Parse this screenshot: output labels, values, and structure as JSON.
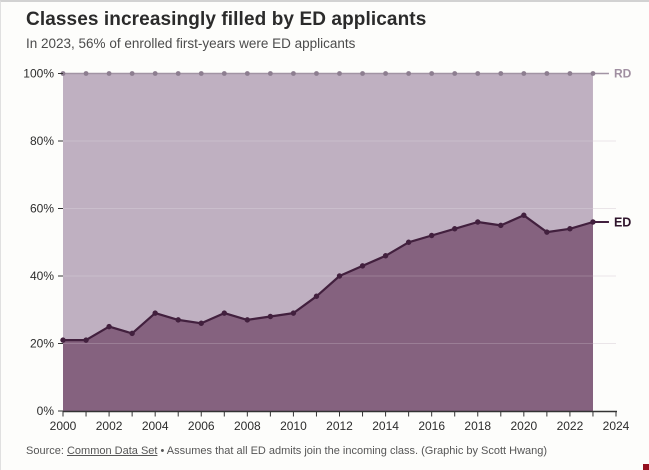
{
  "header": {
    "title": "Classes increasingly filled by ED applicants",
    "subtitle": "In 2023, 56% of enrolled first-years were ED applicants"
  },
  "chart_data": {
    "type": "area",
    "stacked": true,
    "stack_total": 100,
    "x": [
      2000,
      2001,
      2002,
      2003,
      2004,
      2005,
      2006,
      2007,
      2008,
      2009,
      2010,
      2011,
      2012,
      2013,
      2014,
      2015,
      2016,
      2017,
      2018,
      2019,
      2020,
      2021,
      2022,
      2023
    ],
    "series": [
      {
        "name": "ED",
        "values": [
          21,
          21,
          25,
          23,
          29,
          27,
          26,
          29,
          27,
          28,
          29,
          34,
          40,
          43,
          46,
          50,
          52,
          54,
          56,
          55,
          58,
          53,
          54,
          56
        ]
      },
      {
        "name": "RD",
        "values": [
          79,
          79,
          75,
          77,
          71,
          73,
          74,
          71,
          73,
          72,
          71,
          66,
          60,
          57,
          54,
          50,
          48,
          46,
          44,
          45,
          42,
          47,
          46,
          44
        ]
      }
    ],
    "rd_cumulative_line": 100,
    "xlim": [
      2000,
      2024
    ],
    "ylim": [
      0,
      100
    ],
    "x_tick_labels": [
      "2000",
      "2002",
      "2004",
      "2006",
      "2008",
      "2010",
      "2012",
      "2014",
      "2016",
      "2018",
      "2020",
      "2022",
      "2024"
    ],
    "x_minor_tick_step": 1,
    "y_tick_labels": [
      "0%",
      "20%",
      "40%",
      "60%",
      "80%",
      "100%"
    ],
    "y_tick_step": 20,
    "grid": true,
    "legend_position": "end-of-line",
    "end_labels": [
      {
        "text": "RD",
        "at_value": 100
      },
      {
        "text": "ED",
        "at_value": 56
      }
    ],
    "colors": {
      "ed_fill": "#85627f",
      "ed_line": "#42203e",
      "ed_label": "#2f152c",
      "rd_fill": "#bfb0c1",
      "rd_line": "#a294a4",
      "rd_marker": "#8d7e90",
      "rd_label": "#a08fa1",
      "axis": "#333333",
      "tick_text": "#2d2d2d",
      "grid_under": "#eae5e8",
      "grid_over": "rgba(255,255,255,0.18)"
    }
  },
  "footer": {
    "source_prefix": "Source: ",
    "source_link": "Common Data Set",
    "source_suffix": " • Assumes that all ED admits join the incoming class. (Graphic by Scott Hwang)"
  }
}
